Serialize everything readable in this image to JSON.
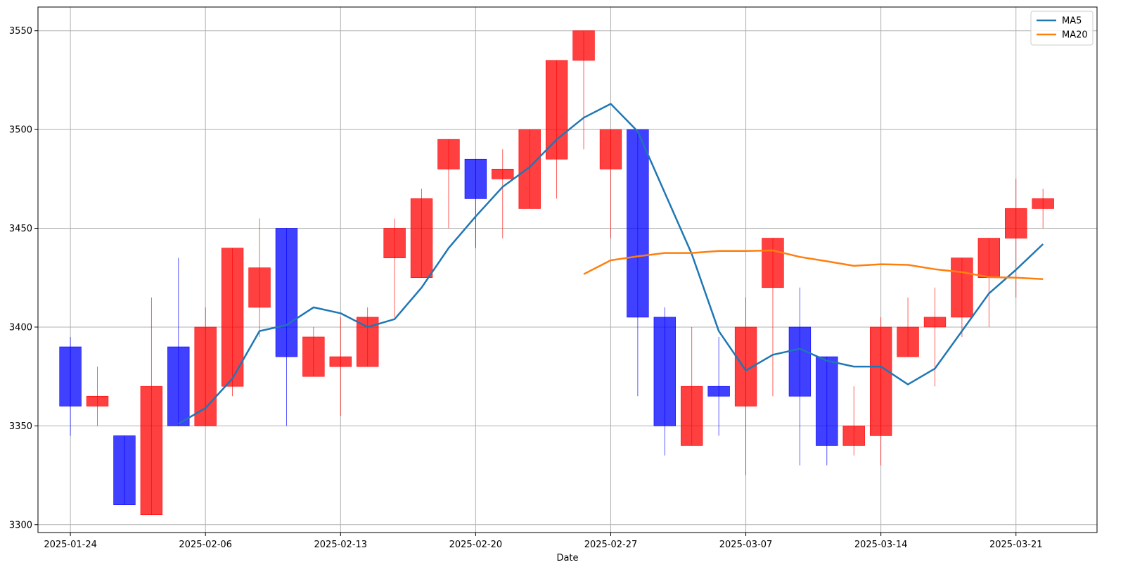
{
  "chart_data": {
    "type": "candlestick",
    "title": "",
    "xlabel": "Date",
    "ylabel": "",
    "ylim": [
      3296,
      3562
    ],
    "grid": true,
    "legend_position": "top-right",
    "x_tick_labels": [
      "2025-01-24",
      "2025-02-06",
      "2025-02-13",
      "2025-02-20",
      "2025-02-27",
      "2025-03-07",
      "2025-03-14",
      "2025-03-21"
    ],
    "x_tick_index": [
      0,
      5,
      10,
      15,
      20,
      25,
      30,
      35
    ],
    "y_ticks": [
      3300,
      3350,
      3400,
      3450,
      3500,
      3550
    ],
    "colors": {
      "up": "#ff0000",
      "down": "#0000ff",
      "ma5": "#1f77b4",
      "ma20": "#ff7f0e"
    },
    "candles": [
      {
        "open": 3390,
        "close": 3360,
        "high": 3395,
        "low": 3345
      },
      {
        "open": 3360,
        "close": 3365,
        "high": 3380,
        "low": 3350
      },
      {
        "open": 3345,
        "close": 3310,
        "high": 3345,
        "low": 3310
      },
      {
        "open": 3305,
        "close": 3370,
        "high": 3415,
        "low": 3305
      },
      {
        "open": 3390,
        "close": 3350,
        "high": 3435,
        "low": 3350
      },
      {
        "open": 3350,
        "close": 3400,
        "high": 3410,
        "low": 3350
      },
      {
        "open": 3370,
        "close": 3440,
        "high": 3440,
        "low": 3365
      },
      {
        "open": 3410,
        "close": 3430,
        "high": 3455,
        "low": 3395
      },
      {
        "open": 3450,
        "close": 3385,
        "high": 3450,
        "low": 3350
      },
      {
        "open": 3375,
        "close": 3395,
        "high": 3400,
        "low": 3375
      },
      {
        "open": 3380,
        "close": 3385,
        "high": 3405,
        "low": 3355
      },
      {
        "open": 3380,
        "close": 3405,
        "high": 3410,
        "low": 3380
      },
      {
        "open": 3435,
        "close": 3450,
        "high": 3455,
        "low": 3405
      },
      {
        "open": 3425,
        "close": 3465,
        "high": 3470,
        "low": 3425
      },
      {
        "open": 3480,
        "close": 3495,
        "high": 3495,
        "low": 3450
      },
      {
        "open": 3485,
        "close": 3465,
        "high": 3485,
        "low": 3440
      },
      {
        "open": 3475,
        "close": 3480,
        "high": 3490,
        "low": 3445
      },
      {
        "open": 3460,
        "close": 3500,
        "high": 3500,
        "low": 3460
      },
      {
        "open": 3485,
        "close": 3535,
        "high": 3535,
        "low": 3465
      },
      {
        "open": 3535,
        "close": 3550,
        "high": 3550,
        "low": 3490
      },
      {
        "open": 3480,
        "close": 3500,
        "high": 3500,
        "low": 3445
      },
      {
        "open": 3500,
        "close": 3405,
        "high": 3500,
        "low": 3365
      },
      {
        "open": 3405,
        "close": 3350,
        "high": 3410,
        "low": 3335
      },
      {
        "open": 3340,
        "close": 3370,
        "high": 3400,
        "low": 3340
      },
      {
        "open": 3370,
        "close": 3365,
        "high": 3395,
        "low": 3345
      },
      {
        "open": 3360,
        "close": 3400,
        "high": 3415,
        "low": 3325
      },
      {
        "open": 3420,
        "close": 3445,
        "high": 3445,
        "low": 3365
      },
      {
        "open": 3400,
        "close": 3365,
        "high": 3420,
        "low": 3330
      },
      {
        "open": 3385,
        "close": 3340,
        "high": 3385,
        "low": 3330
      },
      {
        "open": 3340,
        "close": 3350,
        "high": 3370,
        "low": 3335
      },
      {
        "open": 3345,
        "close": 3400,
        "high": 3405,
        "low": 3330
      },
      {
        "open": 3385,
        "close": 3400,
        "high": 3415,
        "low": 3385
      },
      {
        "open": 3400,
        "close": 3405,
        "high": 3420,
        "low": 3370
      },
      {
        "open": 3405,
        "close": 3435,
        "high": 3435,
        "low": 3395
      },
      {
        "open": 3425,
        "close": 3445,
        "high": 3445,
        "low": 3400
      },
      {
        "open": 3445,
        "close": 3460,
        "high": 3475,
        "low": 3415
      },
      {
        "open": 3460,
        "close": 3465,
        "high": 3470,
        "low": 3450
      }
    ],
    "series": [
      {
        "name": "MA5",
        "start_index": 4,
        "values": [
          3351,
          3359,
          3374,
          3398,
          3401,
          3410,
          3407,
          3400,
          3404,
          3420,
          3440,
          3456,
          3471,
          3481,
          3495,
          3506,
          3513,
          3499,
          3468,
          3437,
          3398,
          3378,
          3386,
          3389,
          3383,
          3380,
          3380,
          3371,
          3379,
          3398,
          3417,
          3429,
          3442
        ]
      },
      {
        "name": "MA20",
        "start_index": 19,
        "values": [
          3426.8,
          3433.8,
          3435.8,
          3437.5,
          3437.5,
          3438.5,
          3438.5,
          3438.8,
          3435.5,
          3433.3,
          3431.0,
          3431.8,
          3431.5,
          3429.3,
          3427.8,
          3425.3,
          3425.0,
          3424.3
        ]
      }
    ]
  }
}
